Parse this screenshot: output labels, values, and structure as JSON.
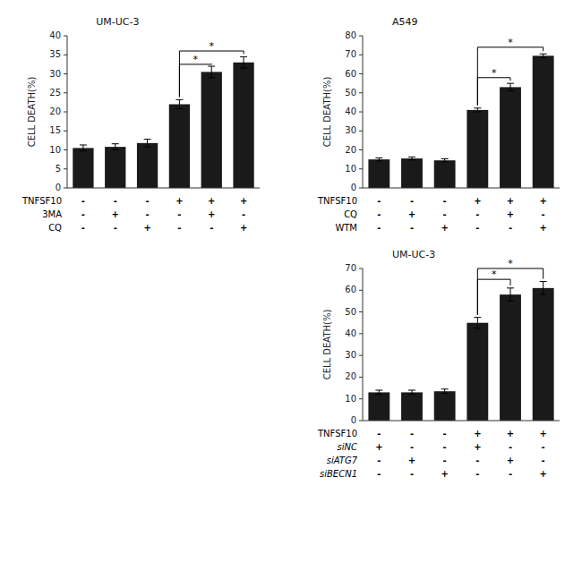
{
  "chart_data": [
    {
      "type": "bar",
      "title": "UM-UC-3",
      "ylabel": "CELL DEATH(%)",
      "values": [
        10.5,
        10.8,
        11.8,
        22.0,
        30.5,
        33.0
      ],
      "errors": [
        0.8,
        0.8,
        1.0,
        1.2,
        1.5,
        1.5
      ],
      "color": "#1a1a1a",
      "ylim": [
        0,
        40
      ],
      "yticks": [
        0,
        5,
        10,
        15,
        20,
        25,
        30,
        35,
        40
      ],
      "condition_rows": [
        {
          "name": "TNFSF10",
          "signs": [
            "-",
            "-",
            "-",
            "+",
            "+",
            "+"
          ]
        },
        {
          "name": "3MA",
          "signs": [
            "-",
            "+",
            "-",
            "-",
            "+",
            "-"
          ]
        },
        {
          "name": "CQ",
          "signs": [
            "-",
            "-",
            "+",
            "-",
            "-",
            "+"
          ]
        }
      ],
      "annotations": [
        {
          "text": "*",
          "from": 3,
          "to": 4,
          "y": 32.5
        },
        {
          "text": "*",
          "from": 3,
          "to": 5,
          "y": 36.0
        }
      ]
    },
    {
      "type": "bar",
      "title": "A549",
      "ylabel": "CELL DEATH(%)",
      "values": [
        15.0,
        15.5,
        14.5,
        41.0,
        53.0,
        69.5
      ],
      "errors": [
        0.8,
        0.8,
        0.8,
        1.0,
        2.0,
        1.0
      ],
      "color": "#1a1a1a",
      "ylim": [
        0,
        80
      ],
      "yticks": [
        0,
        10,
        20,
        30,
        40,
        50,
        60,
        70,
        80
      ],
      "condition_rows": [
        {
          "name": "TNFSF10",
          "signs": [
            "-",
            "-",
            "-",
            "+",
            "+",
            "+"
          ]
        },
        {
          "name": "CQ",
          "signs": [
            "-",
            "+",
            "-",
            "-",
            "+",
            "-"
          ]
        },
        {
          "name": "WTM",
          "signs": [
            "-",
            "-",
            "+",
            "-",
            "-",
            "+"
          ]
        }
      ],
      "annotations": [
        {
          "text": "*",
          "from": 3,
          "to": 4,
          "y": 58
        },
        {
          "text": "*",
          "from": 3,
          "to": 5,
          "y": 74
        }
      ]
    },
    {
      "type": "bar",
      "title": "UM-UC-3",
      "ylabel": "CELL DEATH(%)",
      "values": [
        13.0,
        13.0,
        13.5,
        45.0,
        58.0,
        61.0
      ],
      "errors": [
        1.0,
        1.0,
        1.0,
        2.5,
        3.0,
        3.0
      ],
      "color": "#1a1a1a",
      "ylim": [
        0,
        70
      ],
      "yticks": [
        0,
        10,
        20,
        30,
        40,
        50,
        60,
        70
      ],
      "condition_rows": [
        {
          "name": "TNFSF10",
          "signs": [
            "-",
            "-",
            "-",
            "+",
            "+",
            "+"
          ]
        },
        {
          "name": "siNC",
          "signs": [
            "+",
            "-",
            "-",
            "+",
            "-",
            "-"
          ]
        },
        {
          "name": "siATG7",
          "signs": [
            "-",
            "+",
            "-",
            "-",
            "+",
            "-"
          ]
        },
        {
          "name": "siBECN1",
          "signs": [
            "-",
            "-",
            "+",
            "-",
            "-",
            "+"
          ]
        }
      ],
      "annotations": [
        {
          "text": "*",
          "from": 3,
          "to": 4,
          "y": 65
        },
        {
          "text": "*",
          "from": 3,
          "to": 5,
          "y": 70
        }
      ]
    }
  ]
}
